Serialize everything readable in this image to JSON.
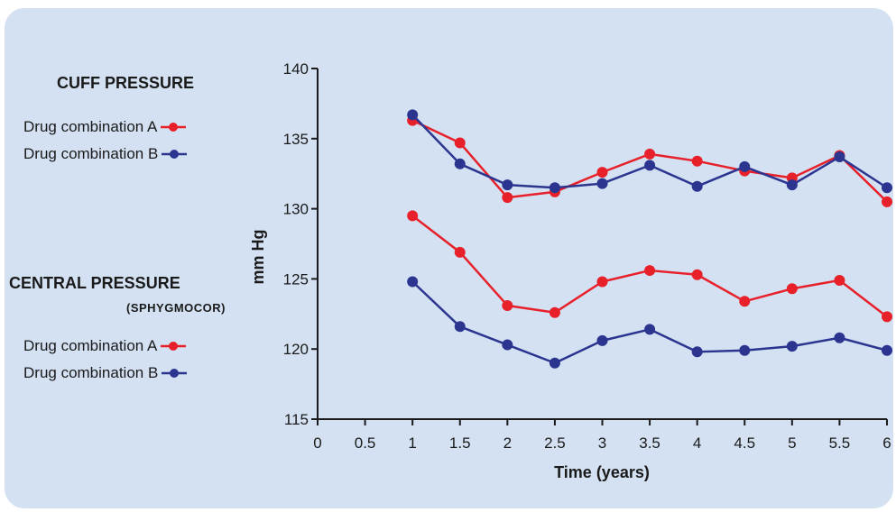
{
  "colors": {
    "panel_bg": "#d3e1f2",
    "series_a": "#e8202a",
    "series_b": "#2b3590",
    "axis": "#1a1a1a"
  },
  "legend": {
    "cuff_title": "CUFF PRESSURE",
    "central_title": "CENTRAL PRESSURE",
    "central_subtitle": "(SPHYGMOCOR)",
    "cuff_a": "Drug combination A",
    "cuff_b": "Drug combination B",
    "central_a": "Drug combination A",
    "central_b": "Drug combination B"
  },
  "chart_data": {
    "type": "line",
    "xlabel": "Time (years)",
    "ylabel": "mm Hg",
    "xlim": [
      0,
      6
    ],
    "ylim": [
      115,
      140
    ],
    "xticks": [
      "0",
      "0.5",
      "1",
      "1.5",
      "2",
      "2.5",
      "3",
      "3.5",
      "4",
      "4.5",
      "5",
      "5.5",
      "6"
    ],
    "yticks": [
      "115",
      "120",
      "125",
      "130",
      "135",
      "140"
    ],
    "x": [
      1,
      1.5,
      2,
      2.5,
      3,
      3.5,
      4,
      4.5,
      5,
      5.5,
      6
    ],
    "series": [
      {
        "name": "Drug combination A",
        "group": "CUFF PRESSURE",
        "color": "#e8202a",
        "values": [
          136.3,
          134.7,
          130.8,
          131.2,
          132.6,
          133.9,
          133.4,
          132.7,
          132.2,
          133.8,
          130.5
        ]
      },
      {
        "name": "Drug combination B",
        "group": "CUFF PRESSURE",
        "color": "#2b3590",
        "values": [
          136.7,
          133.2,
          131.7,
          131.5,
          131.8,
          133.1,
          131.6,
          133.0,
          131.7,
          133.7,
          131.5
        ]
      },
      {
        "name": "Drug combination A",
        "group": "CENTRAL PRESSURE",
        "color": "#e8202a",
        "values": [
          129.5,
          126.9,
          123.1,
          122.6,
          124.8,
          125.6,
          125.3,
          123.4,
          124.3,
          124.9,
          122.3
        ]
      },
      {
        "name": "Drug combination B",
        "group": "CENTRAL PRESSURE",
        "color": "#2b3590",
        "values": [
          124.8,
          121.6,
          120.3,
          119.0,
          120.6,
          121.4,
          119.8,
          119.9,
          120.2,
          120.8,
          119.9
        ]
      }
    ]
  }
}
